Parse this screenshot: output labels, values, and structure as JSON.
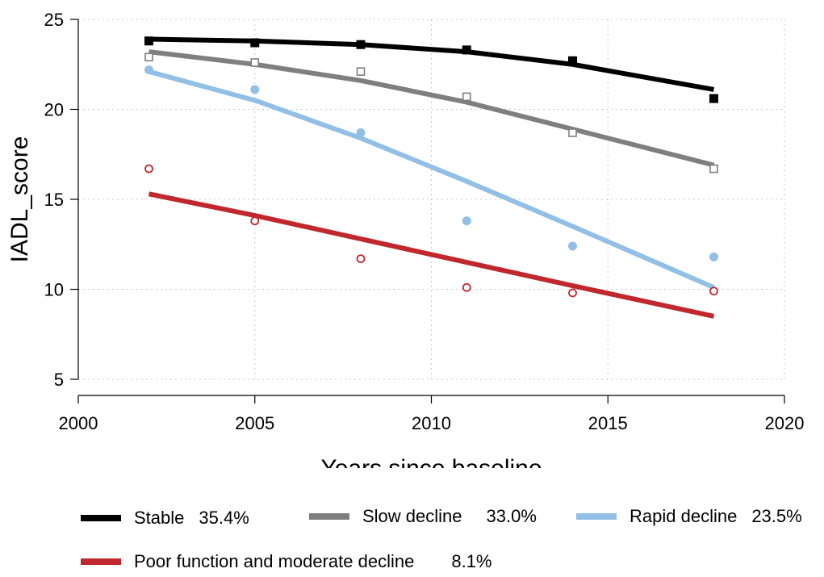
{
  "chart_data": {
    "type": "line",
    "title": "",
    "xlabel": "Years since baseline",
    "ylabel": "IADL_score",
    "xlim": [
      2000,
      2020
    ],
    "ylim": [
      5,
      25
    ],
    "xticks": [
      2000,
      2005,
      2010,
      2015,
      2020
    ],
    "yticks": [
      5,
      10,
      15,
      20,
      25
    ],
    "grid": true,
    "series": [
      {
        "name": "Stable",
        "share": "35.4%",
        "color": "#000000",
        "marker": "filled-square",
        "observed": {
          "x": [
            2002,
            2005,
            2008,
            2011,
            2014,
            2018
          ],
          "y": [
            23.8,
            23.7,
            23.6,
            23.3,
            22.7,
            20.6
          ]
        },
        "fitted": {
          "x": [
            2002,
            2005,
            2008,
            2011,
            2014,
            2018
          ],
          "y": [
            23.9,
            23.8,
            23.6,
            23.2,
            22.5,
            21.1
          ]
        }
      },
      {
        "name": "Slow decline",
        "share": "33.0%",
        "color": "#7f7f7f",
        "marker": "hollow-square",
        "observed": {
          "x": [
            2002,
            2005,
            2008,
            2011,
            2014,
            2018
          ],
          "y": [
            22.9,
            22.6,
            22.1,
            20.7,
            18.7,
            16.7
          ]
        },
        "fitted": {
          "x": [
            2002,
            2005,
            2008,
            2011,
            2014,
            2018
          ],
          "y": [
            23.2,
            22.5,
            21.6,
            20.4,
            18.9,
            16.9
          ]
        }
      },
      {
        "name": "Rapid decline",
        "share": "23.5%",
        "color": "#92bfe6",
        "marker": "filled-circle",
        "observed": {
          "x": [
            2002,
            2005,
            2008,
            2011,
            2014,
            2018
          ],
          "y": [
            22.2,
            21.1,
            18.7,
            13.8,
            12.4,
            11.8
          ]
        },
        "fitted": {
          "x": [
            2002,
            2005,
            2008,
            2011,
            2014,
            2018
          ],
          "y": [
            22.1,
            20.5,
            18.4,
            16.0,
            13.5,
            10.1
          ]
        }
      },
      {
        "name": "Poor function and moderate decline",
        "share": "8.1%",
        "color": "#c1282d",
        "marker": "hollow-circle",
        "observed": {
          "x": [
            2002,
            2005,
            2008,
            2011,
            2014,
            2018
          ],
          "y": [
            16.7,
            13.8,
            11.7,
            10.1,
            9.8,
            9.9
          ]
        },
        "fitted": {
          "x": [
            2002,
            2005,
            2008,
            2011,
            2014,
            2018
          ],
          "y": [
            15.3,
            14.1,
            12.8,
            11.5,
            10.2,
            8.5
          ]
        }
      }
    ]
  }
}
